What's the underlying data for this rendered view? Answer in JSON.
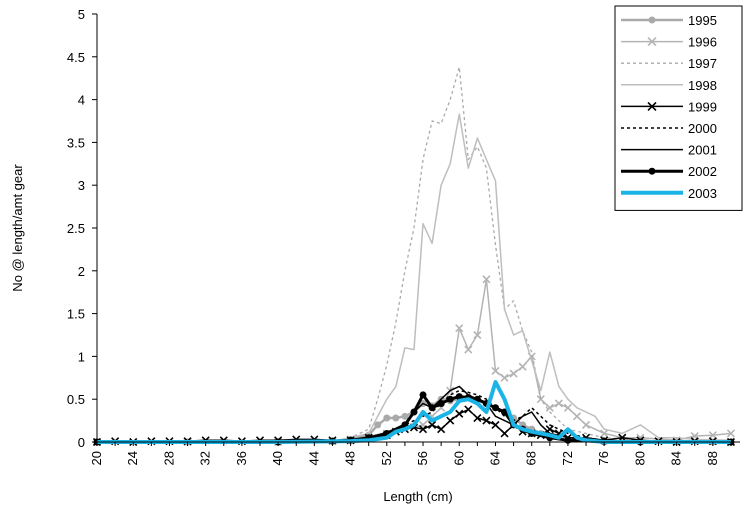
{
  "chart_data": {
    "type": "line",
    "title": "",
    "xlabel": "Length (cm)",
    "ylabel": "No @ length/amt gear",
    "xlim": [
      20,
      91
    ],
    "ylim": [
      0,
      5
    ],
    "x_ticks": [
      "20",
      "24",
      "28",
      "32",
      "36",
      "40",
      "44",
      "48",
      "52",
      "56",
      "60",
      "64",
      "68",
      "72",
      "76",
      "80",
      "84",
      "88"
    ],
    "y_ticks": [
      "0",
      "0.5",
      "1",
      "1.5",
      "2",
      "2.5",
      "3",
      "3.5",
      "4",
      "4.5",
      "5"
    ],
    "grid": false,
    "legend_position": "top-right",
    "series": [
      {
        "name": "1995",
        "color": "#aaaaaa",
        "width": 2.5,
        "dash": "",
        "marker": "circle",
        "points": [
          [
            20,
            0
          ],
          [
            30,
            0
          ],
          [
            40,
            0
          ],
          [
            46,
            0.01
          ],
          [
            48,
            0.03
          ],
          [
            50,
            0.08
          ],
          [
            51,
            0.2
          ],
          [
            52,
            0.28
          ],
          [
            53,
            0.28
          ],
          [
            54,
            0.3
          ],
          [
            55,
            0.35
          ],
          [
            56,
            0.45
          ],
          [
            57,
            0.42
          ],
          [
            58,
            0.5
          ],
          [
            59,
            0.48
          ],
          [
            60,
            0.5
          ],
          [
            61,
            0.52
          ],
          [
            62,
            0.48
          ],
          [
            63,
            0.45
          ],
          [
            64,
            0.4
          ],
          [
            65,
            0.35
          ],
          [
            66,
            0.28
          ],
          [
            67,
            0.2
          ],
          [
            68,
            0.15
          ],
          [
            69,
            0.1
          ],
          [
            70,
            0.05
          ],
          [
            72,
            0.02
          ],
          [
            76,
            0
          ],
          [
            80,
            0
          ],
          [
            84,
            0
          ],
          [
            88,
            0
          ],
          [
            90,
            0
          ]
        ]
      },
      {
        "name": "1996",
        "color": "#b4b4b4",
        "width": 1.5,
        "dash": "",
        "marker": "x",
        "points": [
          [
            20,
            0
          ],
          [
            30,
            0
          ],
          [
            40,
            0
          ],
          [
            46,
            0.01
          ],
          [
            48,
            0.03
          ],
          [
            50,
            0.05
          ],
          [
            52,
            0.1
          ],
          [
            54,
            0.15
          ],
          [
            56,
            0.2
          ],
          [
            57,
            0.3
          ],
          [
            58,
            0.4
          ],
          [
            59,
            0.6
          ],
          [
            60,
            1.33
          ],
          [
            61,
            1.08
          ],
          [
            62,
            1.25
          ],
          [
            63,
            1.9
          ],
          [
            64,
            0.83
          ],
          [
            65,
            0.75
          ],
          [
            66,
            0.8
          ],
          [
            67,
            0.88
          ],
          [
            68,
            1.0
          ],
          [
            69,
            0.5
          ],
          [
            70,
            0.4
          ],
          [
            71,
            0.45
          ],
          [
            72,
            0.4
          ],
          [
            73,
            0.3
          ],
          [
            74,
            0.2
          ],
          [
            76,
            0.1
          ],
          [
            78,
            0.05
          ],
          [
            80,
            0.05
          ],
          [
            84,
            0.02
          ],
          [
            86,
            0.07
          ],
          [
            88,
            0.08
          ],
          [
            90,
            0.1
          ]
        ]
      },
      {
        "name": "1997",
        "color": "#aaaaaa",
        "width": 1.3,
        "dash": "3,3",
        "marker": "none",
        "points": [
          [
            20,
            0
          ],
          [
            40,
            0
          ],
          [
            46,
            0.01
          ],
          [
            48,
            0.05
          ],
          [
            50,
            0.15
          ],
          [
            51,
            0.5
          ],
          [
            52,
            0.9
          ],
          [
            53,
            1.4
          ],
          [
            54,
            2.0
          ],
          [
            55,
            2.5
          ],
          [
            56,
            3.3
          ],
          [
            57,
            3.75
          ],
          [
            58,
            3.72
          ],
          [
            59,
            4.0
          ],
          [
            60,
            4.38
          ],
          [
            61,
            3.3
          ],
          [
            62,
            3.45
          ],
          [
            63,
            3.2
          ],
          [
            64,
            2.3
          ],
          [
            65,
            1.55
          ],
          [
            66,
            1.65
          ],
          [
            67,
            1.3
          ],
          [
            68,
            1.05
          ],
          [
            69,
            0.5
          ],
          [
            70,
            0.35
          ],
          [
            71,
            0.25
          ],
          [
            72,
            0.15
          ],
          [
            74,
            0.1
          ],
          [
            76,
            0.05
          ],
          [
            80,
            0.02
          ],
          [
            84,
            0
          ],
          [
            90,
            0
          ]
        ]
      },
      {
        "name": "1998",
        "color": "#bebebe",
        "width": 1.5,
        "dash": "",
        "marker": "none",
        "points": [
          [
            20,
            0
          ],
          [
            40,
            0
          ],
          [
            46,
            0.01
          ],
          [
            48,
            0.05
          ],
          [
            50,
            0.1
          ],
          [
            51,
            0.3
          ],
          [
            52,
            0.5
          ],
          [
            53,
            0.65
          ],
          [
            54,
            1.1
          ],
          [
            55,
            1.08
          ],
          [
            56,
            2.55
          ],
          [
            57,
            2.32
          ],
          [
            58,
            3.0
          ],
          [
            59,
            3.25
          ],
          [
            60,
            3.83
          ],
          [
            61,
            3.2
          ],
          [
            62,
            3.55
          ],
          [
            63,
            3.3
          ],
          [
            64,
            3.05
          ],
          [
            65,
            1.55
          ],
          [
            66,
            1.25
          ],
          [
            67,
            1.3
          ],
          [
            68,
            0.95
          ],
          [
            69,
            0.6
          ],
          [
            70,
            1.05
          ],
          [
            71,
            0.65
          ],
          [
            72,
            0.5
          ],
          [
            73,
            0.4
          ],
          [
            74,
            0.35
          ],
          [
            75,
            0.3
          ],
          [
            76,
            0.15
          ],
          [
            78,
            0.1
          ],
          [
            80,
            0.2
          ],
          [
            82,
            0.05
          ],
          [
            84,
            0.05
          ],
          [
            86,
            0.03
          ],
          [
            90,
            0.02
          ]
        ]
      },
      {
        "name": "1999",
        "color": "#000000",
        "width": 1.5,
        "dash": "",
        "marker": "x",
        "points": [
          [
            20,
            0
          ],
          [
            22,
            0.01
          ],
          [
            24,
            0
          ],
          [
            26,
            0.01
          ],
          [
            28,
            0.01
          ],
          [
            30,
            0.01
          ],
          [
            32,
            0.02
          ],
          [
            34,
            0.02
          ],
          [
            36,
            0.01
          ],
          [
            38,
            0.02
          ],
          [
            40,
            0.02
          ],
          [
            42,
            0.03
          ],
          [
            44,
            0.03
          ],
          [
            46,
            0.02
          ],
          [
            48,
            0.02
          ],
          [
            50,
            0.05
          ],
          [
            52,
            0.08
          ],
          [
            53,
            0.12
          ],
          [
            54,
            0.15
          ],
          [
            55,
            0.17
          ],
          [
            56,
            0.15
          ],
          [
            57,
            0.2
          ],
          [
            58,
            0.15
          ],
          [
            59,
            0.25
          ],
          [
            60,
            0.33
          ],
          [
            61,
            0.38
          ],
          [
            62,
            0.28
          ],
          [
            63,
            0.25
          ],
          [
            64,
            0.2
          ],
          [
            65,
            0.1
          ],
          [
            66,
            0.2
          ],
          [
            67,
            0.12
          ],
          [
            68,
            0.1
          ],
          [
            69,
            0.08
          ],
          [
            70,
            0.15
          ],
          [
            71,
            0.1
          ],
          [
            72,
            0.05
          ],
          [
            74,
            0.05
          ],
          [
            76,
            0.02
          ],
          [
            78,
            0.05
          ],
          [
            80,
            0.02
          ],
          [
            82,
            0.01
          ],
          [
            84,
            0
          ],
          [
            86,
            0.01
          ],
          [
            88,
            0.01
          ],
          [
            90,
            0
          ]
        ]
      },
      {
        "name": "2000",
        "color": "#000000",
        "width": 1.5,
        "dash": "3,3",
        "marker": "none",
        "points": [
          [
            20,
            0
          ],
          [
            40,
            0
          ],
          [
            46,
            0.01
          ],
          [
            48,
            0.02
          ],
          [
            50,
            0.05
          ],
          [
            52,
            0.1
          ],
          [
            54,
            0.2
          ],
          [
            56,
            0.3
          ],
          [
            57,
            0.35
          ],
          [
            58,
            0.45
          ],
          [
            59,
            0.55
          ],
          [
            60,
            0.6
          ],
          [
            61,
            0.58
          ],
          [
            62,
            0.55
          ],
          [
            63,
            0.5
          ],
          [
            64,
            0.4
          ],
          [
            65,
            0.3
          ],
          [
            66,
            0.25
          ],
          [
            67,
            0.3
          ],
          [
            68,
            0.4
          ],
          [
            69,
            0.3
          ],
          [
            70,
            0.2
          ],
          [
            72,
            0.1
          ],
          [
            74,
            0.05
          ],
          [
            76,
            0.02
          ],
          [
            80,
            0
          ],
          [
            90,
            0
          ]
        ]
      },
      {
        "name": "2001",
        "color": "#000000",
        "width": 1.5,
        "dash": "",
        "marker": "none",
        "points": [
          [
            20,
            0
          ],
          [
            40,
            0
          ],
          [
            46,
            0.01
          ],
          [
            48,
            0.02
          ],
          [
            50,
            0.05
          ],
          [
            52,
            0.1
          ],
          [
            54,
            0.2
          ],
          [
            55,
            0.35
          ],
          [
            56,
            0.45
          ],
          [
            57,
            0.4
          ],
          [
            58,
            0.5
          ],
          [
            59,
            0.6
          ],
          [
            60,
            0.65
          ],
          [
            61,
            0.55
          ],
          [
            62,
            0.5
          ],
          [
            63,
            0.45
          ],
          [
            64,
            0.3
          ],
          [
            65,
            0.25
          ],
          [
            66,
            0.2
          ],
          [
            67,
            0.3
          ],
          [
            68,
            0.35
          ],
          [
            69,
            0.2
          ],
          [
            70,
            0.1
          ],
          [
            72,
            0.05
          ],
          [
            76,
            0.02
          ],
          [
            80,
            0
          ],
          [
            90,
            0
          ]
        ]
      },
      {
        "name": "2002",
        "color": "#000000",
        "width": 3,
        "dash": "",
        "marker": "circle",
        "points": [
          [
            20,
            0
          ],
          [
            40,
            0
          ],
          [
            46,
            0.01
          ],
          [
            48,
            0.02
          ],
          [
            50,
            0.05
          ],
          [
            52,
            0.1
          ],
          [
            54,
            0.2
          ],
          [
            55,
            0.35
          ],
          [
            56,
            0.55
          ],
          [
            57,
            0.4
          ],
          [
            58,
            0.45
          ],
          [
            59,
            0.5
          ],
          [
            60,
            0.53
          ],
          [
            61,
            0.52
          ],
          [
            62,
            0.5
          ],
          [
            63,
            0.45
          ],
          [
            64,
            0.4
          ],
          [
            65,
            0.35
          ],
          [
            66,
            0.2
          ],
          [
            67,
            0.15
          ],
          [
            68,
            0.1
          ],
          [
            70,
            0.05
          ],
          [
            72,
            0.02
          ],
          [
            76,
            0.01
          ],
          [
            80,
            0
          ],
          [
            90,
            0
          ]
        ]
      },
      {
        "name": "2003",
        "color": "#1ab4e6",
        "width": 4,
        "dash": "",
        "marker": "none",
        "points": [
          [
            20,
            0
          ],
          [
            40,
            0
          ],
          [
            48,
            0.01
          ],
          [
            50,
            0.02
          ],
          [
            52,
            0.05
          ],
          [
            53,
            0.12
          ],
          [
            54,
            0.15
          ],
          [
            55,
            0.2
          ],
          [
            56,
            0.35
          ],
          [
            57,
            0.25
          ],
          [
            58,
            0.3
          ],
          [
            59,
            0.35
          ],
          [
            60,
            0.48
          ],
          [
            61,
            0.5
          ],
          [
            62,
            0.45
          ],
          [
            63,
            0.35
          ],
          [
            64,
            0.7
          ],
          [
            65,
            0.5
          ],
          [
            66,
            0.2
          ],
          [
            67,
            0.15
          ],
          [
            68,
            0.12
          ],
          [
            69,
            0.1
          ],
          [
            70,
            0.08
          ],
          [
            71,
            0.05
          ],
          [
            72,
            0.15
          ],
          [
            73,
            0.05
          ],
          [
            74,
            0.02
          ],
          [
            76,
            0
          ],
          [
            80,
            0
          ],
          [
            90,
            0
          ]
        ]
      }
    ]
  }
}
